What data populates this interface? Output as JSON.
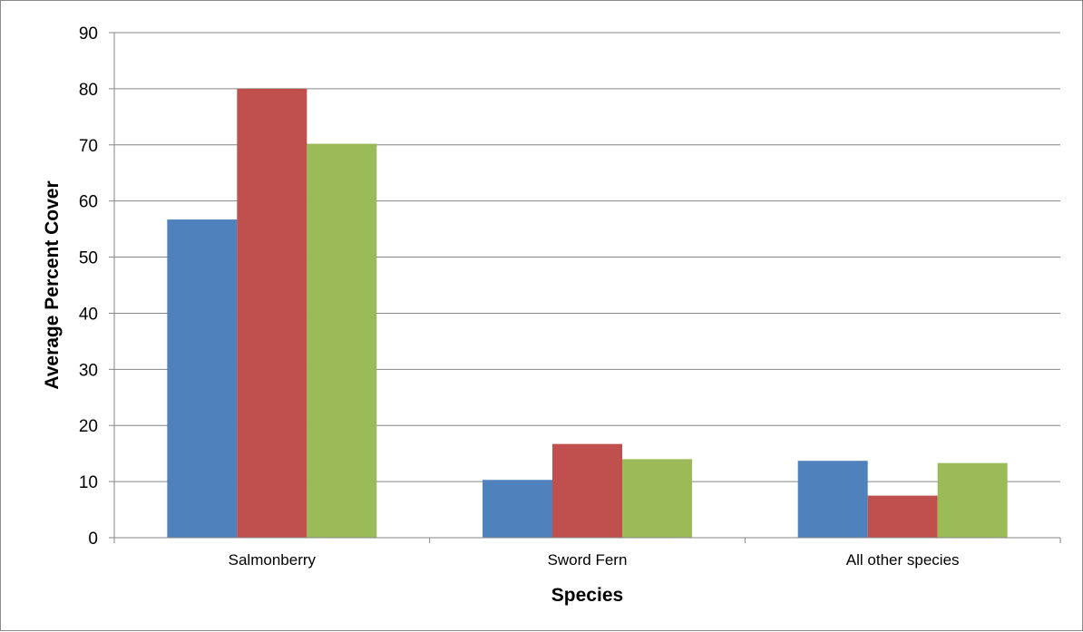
{
  "chart_data": {
    "type": "bar",
    "categories": [
      "Salmonberry",
      "Sword Fern",
      "All other species"
    ],
    "series": [
      {
        "values": [
          56.7,
          10.3,
          13.7
        ],
        "color": "#4F81BD"
      },
      {
        "values": [
          80.0,
          16.7,
          7.5
        ],
        "color": "#C0504D"
      },
      {
        "values": [
          70.2,
          14.0,
          13.3
        ],
        "color": "#9BBB59"
      }
    ],
    "title": "",
    "xlabel": "Species",
    "ylabel": "Average Percent Cover",
    "ylim": [
      0,
      90
    ],
    "yticks": [
      "0",
      "10",
      "20",
      "30",
      "40",
      "50",
      "60",
      "70",
      "80",
      "90"
    ],
    "grid": true,
    "legend": "none"
  }
}
